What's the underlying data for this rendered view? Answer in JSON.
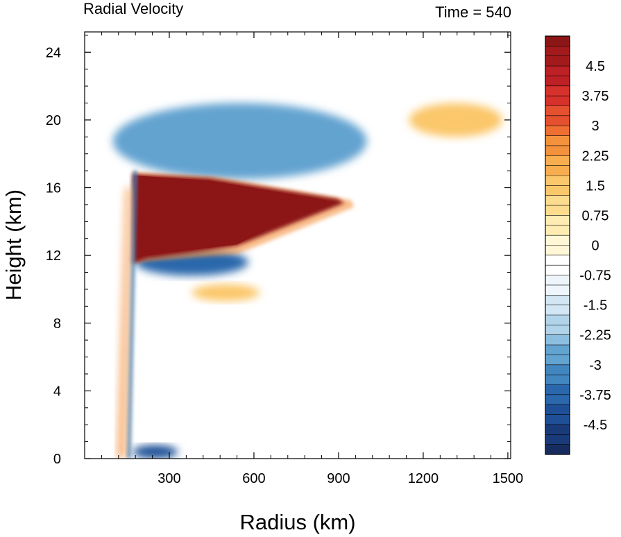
{
  "chart_data": {
    "type": "heatmap",
    "title": "Radial Velocity",
    "subtitle": "Time = 540",
    "xlabel": "Radius (km)",
    "ylabel": "Height (km)",
    "xlim": [
      0,
      1510
    ],
    "ylim": [
      0,
      25.2
    ],
    "x_ticks": [
      300,
      600,
      900,
      1200,
      1500
    ],
    "x_tick_labels": [
      "300",
      "600",
      "900",
      "1200",
      "1500"
    ],
    "y_ticks": [
      0,
      4,
      8,
      12,
      16,
      20,
      24
    ],
    "y_tick_labels": [
      "0",
      "4",
      "8",
      "12",
      "16",
      "20",
      "24"
    ],
    "grid": false,
    "colorbar": {
      "min": -5.25,
      "max": 5.25,
      "step": 0.25,
      "tick_values": [
        4.5,
        3.75,
        3,
        2.25,
        1.5,
        0.75,
        0,
        -0.75,
        -1.5,
        -2.25,
        -3,
        -3.75,
        -4.5
      ],
      "tick_labels": [
        "4.5",
        "3.75",
        "3",
        "2.25",
        "1.5",
        "0.75",
        "0",
        "-0.75",
        "-1.5",
        "-2.25",
        "-3",
        "-3.75",
        "-4.5"
      ],
      "colors_top_to_bottom": [
        "#8c1515",
        "#a31a1c",
        "#bd2025",
        "#d6312b",
        "#e5502f",
        "#ef6f33",
        "#f4913c",
        "#f8ae4f",
        "#fbc76b",
        "#fddc8e",
        "#feecb3",
        "#fff7d6",
        "#ffffff",
        "#eef6fb",
        "#d2e7f3",
        "#b1d4ea",
        "#8bbedf",
        "#63a3d0",
        "#4286c0",
        "#2a67ac",
        "#1f4f96",
        "#1a3b7a",
        "#172c5e"
      ]
    },
    "features": [
      {
        "name": "upper-level outflow jet",
        "x_range": [
          170,
          920
        ],
        "y_range": [
          12.4,
          16.8
        ],
        "value": 5.25
      },
      {
        "name": "return inflow band",
        "x_range": [
          180,
          580
        ],
        "y_range": [
          10.8,
          12.4
        ],
        "value": -4.0
      },
      {
        "name": "low-level inflow",
        "x_range": [
          170,
          330
        ],
        "y_range": [
          0,
          0.8
        ],
        "value": -4.5
      },
      {
        "name": "eyewall updraft edge",
        "x_range": [
          150,
          180
        ],
        "y_range": [
          0,
          17.0
        ],
        "value": -3.5
      },
      {
        "name": "upper inflow streaks",
        "x_range": [
          100,
          1000
        ],
        "y_range": [
          16.5,
          21.0
        ],
        "value": -3.0
      },
      {
        "name": "upper outflow patch",
        "x_range": [
          1150,
          1480
        ],
        "y_range": [
          19.0,
          21.0
        ],
        "value": 1.5
      },
      {
        "name": "mid-level outflow",
        "x_range": [
          380,
          620
        ],
        "y_range": [
          9.3,
          10.3
        ],
        "value": 1.6
      }
    ]
  }
}
